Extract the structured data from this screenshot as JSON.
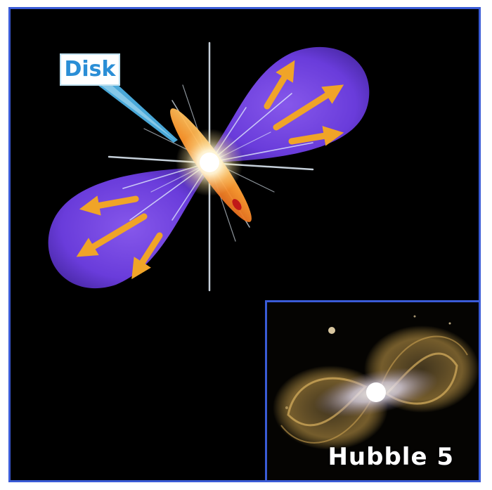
{
  "labels": {
    "disk": "Disk",
    "hubble_caption": "Hubble 5"
  },
  "colors": {
    "frame_border": "#3a5bd6",
    "background": "#000000",
    "lobe": "#7b4ef0",
    "arrow": "#f0a428",
    "disk": "#ff9a30",
    "label_text": "#2a8ed6"
  },
  "icons": {
    "arrow_icon": "gold-arrow",
    "star_icon": "bright-star-flare"
  }
}
